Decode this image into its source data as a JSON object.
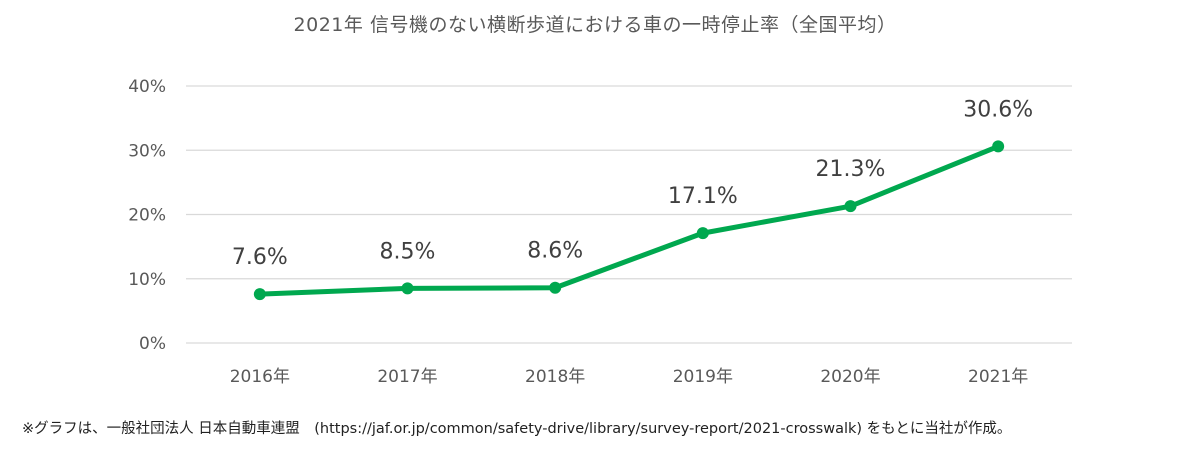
{
  "chart_data": {
    "type": "line",
    "title": "2021年 信号機のない横断歩道における車の一時停止率（全国平均）",
    "categories": [
      "2016年",
      "2017年",
      "2018年",
      "2019年",
      "2020年",
      "2021年"
    ],
    "series": [
      {
        "values": [
          7.6,
          8.5,
          8.6,
          17.1,
          21.3,
          30.6
        ]
      }
    ],
    "data_labels": [
      "7.6%",
      "8.5%",
      "8.6%",
      "17.1%",
      "21.3%",
      "30.6%"
    ],
    "y_ticks": [
      0,
      10,
      20,
      30,
      40
    ],
    "y_tick_labels": [
      "0%",
      "10%",
      "20%",
      "30%",
      "40%"
    ],
    "ylim": [
      0,
      40
    ],
    "xlabel": "",
    "ylabel": "",
    "grid": true,
    "legend": "none",
    "line_color": "#00a84f",
    "grid_color": "#d9d9d9"
  },
  "footnote": "※グラフは、一般社団法人 日本自動車連盟　(https://jaf.or.jp/common/safety-drive/library/survey-report/2021-crosswalk) をもとに当社が作成。"
}
